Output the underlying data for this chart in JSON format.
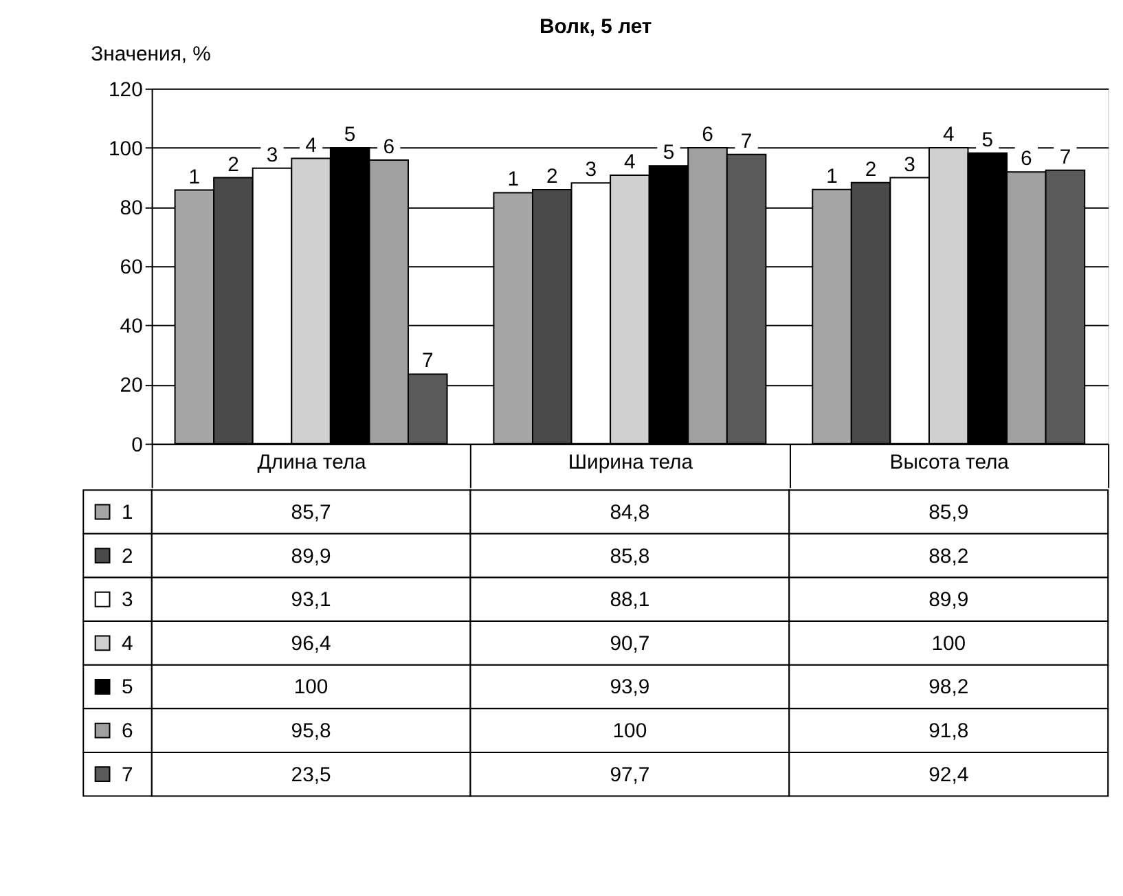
{
  "chart_data": {
    "type": "bar",
    "title": "Волк, 5 лет",
    "ylabel": "Значения, %",
    "categories": [
      "Длина тела",
      "Ширина тела",
      "Высота тела"
    ],
    "series": [
      {
        "name": "1",
        "color": "#a6a6a6",
        "values": [
          85.7,
          84.8,
          85.9
        ],
        "value_labels": [
          "85,7",
          "84,8",
          "85,9"
        ]
      },
      {
        "name": "2",
        "color": "#4a4a4a",
        "values": [
          89.9,
          85.8,
          88.2
        ],
        "value_labels": [
          "89,9",
          "85,8",
          "88,2"
        ]
      },
      {
        "name": "3",
        "color": "#ffffff",
        "values": [
          93.1,
          88.1,
          89.9
        ],
        "value_labels": [
          "93,1",
          "88,1",
          "89,9"
        ]
      },
      {
        "name": "4",
        "color": "#d0d0d0",
        "values": [
          96.4,
          90.7,
          100
        ],
        "value_labels": [
          "96,4",
          "90,7",
          "100"
        ]
      },
      {
        "name": "5",
        "color": "#000000",
        "values": [
          100,
          93.9,
          98.2
        ],
        "value_labels": [
          "100",
          "93,9",
          "98,2"
        ]
      },
      {
        "name": "6",
        "color": "#a0a0a0",
        "values": [
          95.8,
          100,
          91.8
        ],
        "value_labels": [
          "95,8",
          "100",
          "91,8"
        ]
      },
      {
        "name": "7",
        "color": "#5a5a5a",
        "values": [
          23.5,
          97.7,
          92.4
        ],
        "value_labels": [
          "23,5",
          "97,7",
          "92,4"
        ]
      }
    ],
    "ylim": [
      0,
      120
    ],
    "yticks": [
      0,
      20,
      40,
      60,
      80,
      100,
      120
    ],
    "grid": "y",
    "legend": "bottom left"
  }
}
